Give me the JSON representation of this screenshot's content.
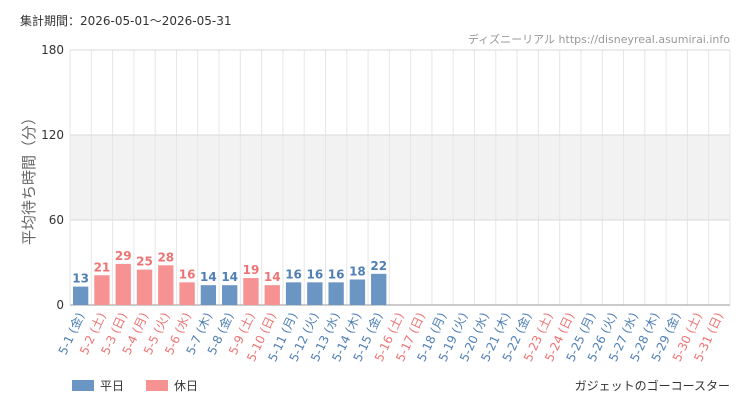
{
  "header": {
    "period": "集計期間：2026-05-01～2026-05-31",
    "credit": "ディズニーリアル https://disneyreal.asumirai.info"
  },
  "footer": {
    "attraction": "ガジェットのゴーコースター"
  },
  "colors": {
    "weekday": "#6b96c4",
    "holiday": "#f79292",
    "weekday_text": "#4f7fb5",
    "holiday_text": "#ee7474",
    "band": "#f2f2f2",
    "grid": "#e6e6e6"
  },
  "chart_data": {
    "type": "bar",
    "ylabel": "平均待ち時間（分）",
    "ylim": [
      0,
      180
    ],
    "yticks": [
      0,
      60,
      120,
      180
    ],
    "grid": true,
    "legend_position": "bottom-left",
    "series": [
      {
        "name": "平日",
        "color": "#6b96c4"
      },
      {
        "name": "休日",
        "color": "#f79292"
      }
    ],
    "categories": [
      "5-1 (金)",
      "5-2 (土)",
      "5-3 (日)",
      "5-4 (月)",
      "5-5 (火)",
      "5-6 (水)",
      "5-7 (木)",
      "5-8 (金)",
      "5-9 (土)",
      "5-10 (日)",
      "5-11 (月)",
      "5-12 (火)",
      "5-13 (水)",
      "5-14 (木)",
      "5-15 (金)",
      "5-16 (土)",
      "5-17 (日)",
      "5-18 (月)",
      "5-19 (火)",
      "5-20 (水)",
      "5-21 (木)",
      "5-22 (金)",
      "5-23 (土)",
      "5-24 (日)",
      "5-25 (月)",
      "5-26 (火)",
      "5-27 (水)",
      "5-28 (木)",
      "5-29 (金)",
      "5-30 (土)",
      "5-31 (日)"
    ],
    "day_type": [
      "平日",
      "休日",
      "休日",
      "休日",
      "休日",
      "休日",
      "平日",
      "平日",
      "休日",
      "休日",
      "平日",
      "平日",
      "平日",
      "平日",
      "平日",
      "休日",
      "休日",
      "平日",
      "平日",
      "平日",
      "平日",
      "平日",
      "休日",
      "休日",
      "平日",
      "平日",
      "平日",
      "平日",
      "平日",
      "休日",
      "休日"
    ],
    "values": [
      13,
      21,
      29,
      25,
      28,
      16,
      14,
      14,
      19,
      14,
      16,
      16,
      16,
      18,
      22,
      null,
      null,
      null,
      null,
      null,
      null,
      null,
      null,
      null,
      null,
      null,
      null,
      null,
      null,
      null,
      null
    ]
  }
}
